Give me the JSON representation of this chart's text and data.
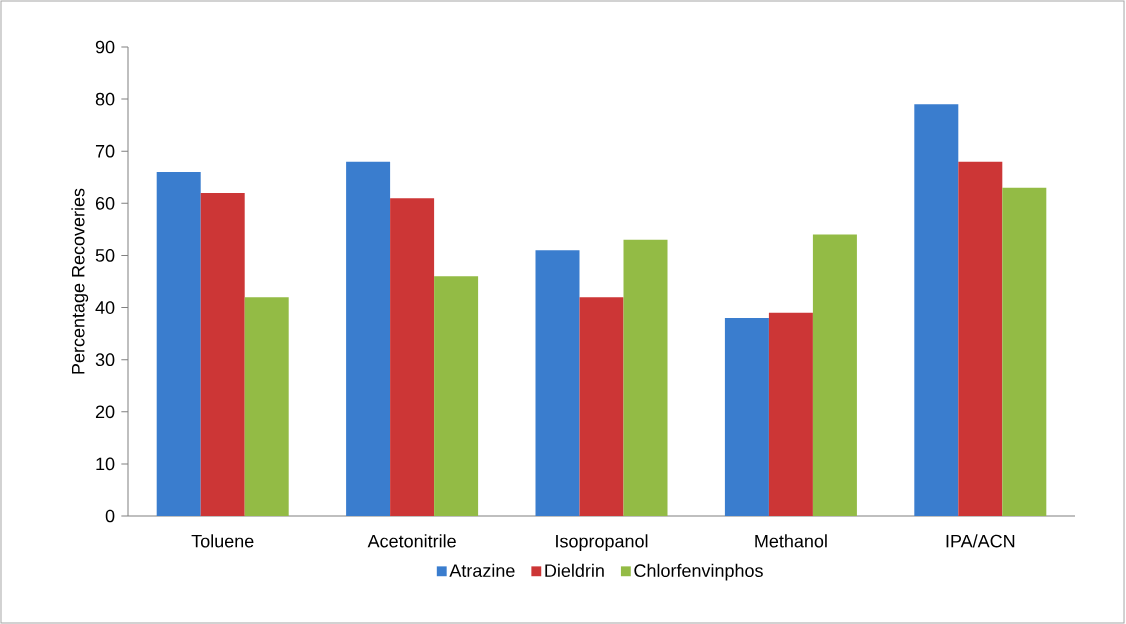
{
  "chart_data": {
    "type": "bar",
    "ylabel": "Percentage Recoveries",
    "categories": [
      "Toluene",
      "Acetonitrile",
      "Isopropanol",
      "Methanol",
      "IPA/ACN"
    ],
    "series": [
      {
        "name": "Atrazine",
        "color": "#3a7dce",
        "values": [
          66,
          68,
          51,
          38,
          79
        ]
      },
      {
        "name": "Dieldrin",
        "color": "#cc3636",
        "values": [
          62,
          61,
          42,
          39,
          68
        ]
      },
      {
        "name": "Chlorfenvinphos",
        "color": "#93bb45",
        "values": [
          42,
          46,
          53,
          54,
          63
        ]
      }
    ],
    "ylim": [
      0,
      90
    ],
    "yticks": [
      0,
      10,
      20,
      30,
      40,
      50,
      60,
      70,
      80,
      90
    ],
    "grid": false,
    "legend": "bottom"
  }
}
